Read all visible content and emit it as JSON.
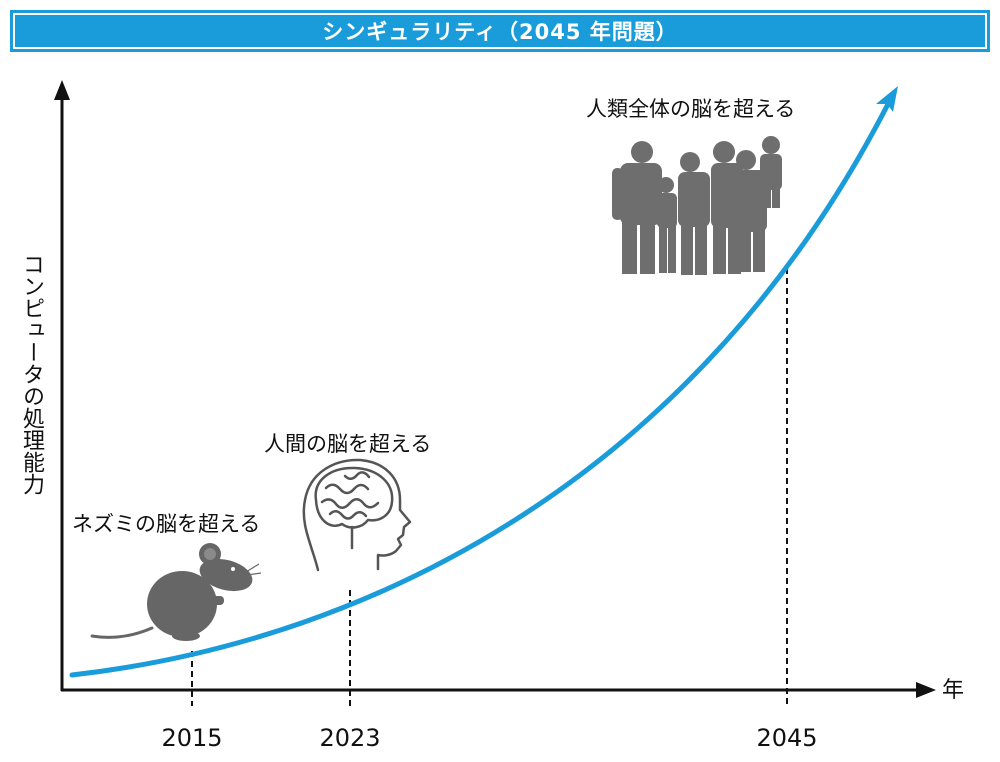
{
  "title": "シンギュラリティ（2045 年問題）",
  "axes": {
    "y_label": "コンピュータの処理能力",
    "x_label": "年"
  },
  "milestones": [
    {
      "year": "2015",
      "label": "ネズミの脳を超える",
      "icon": "mouse-icon"
    },
    {
      "year": "2023",
      "label": "人間の脳を超える",
      "icon": "human-brain-icon"
    },
    {
      "year": "2045",
      "label": "人類全体の脳を超える",
      "icon": "people-group-icon"
    }
  ],
  "colors": {
    "accent": "#1a9cdb",
    "axis": "#111111",
    "illustration": "#666666"
  }
}
